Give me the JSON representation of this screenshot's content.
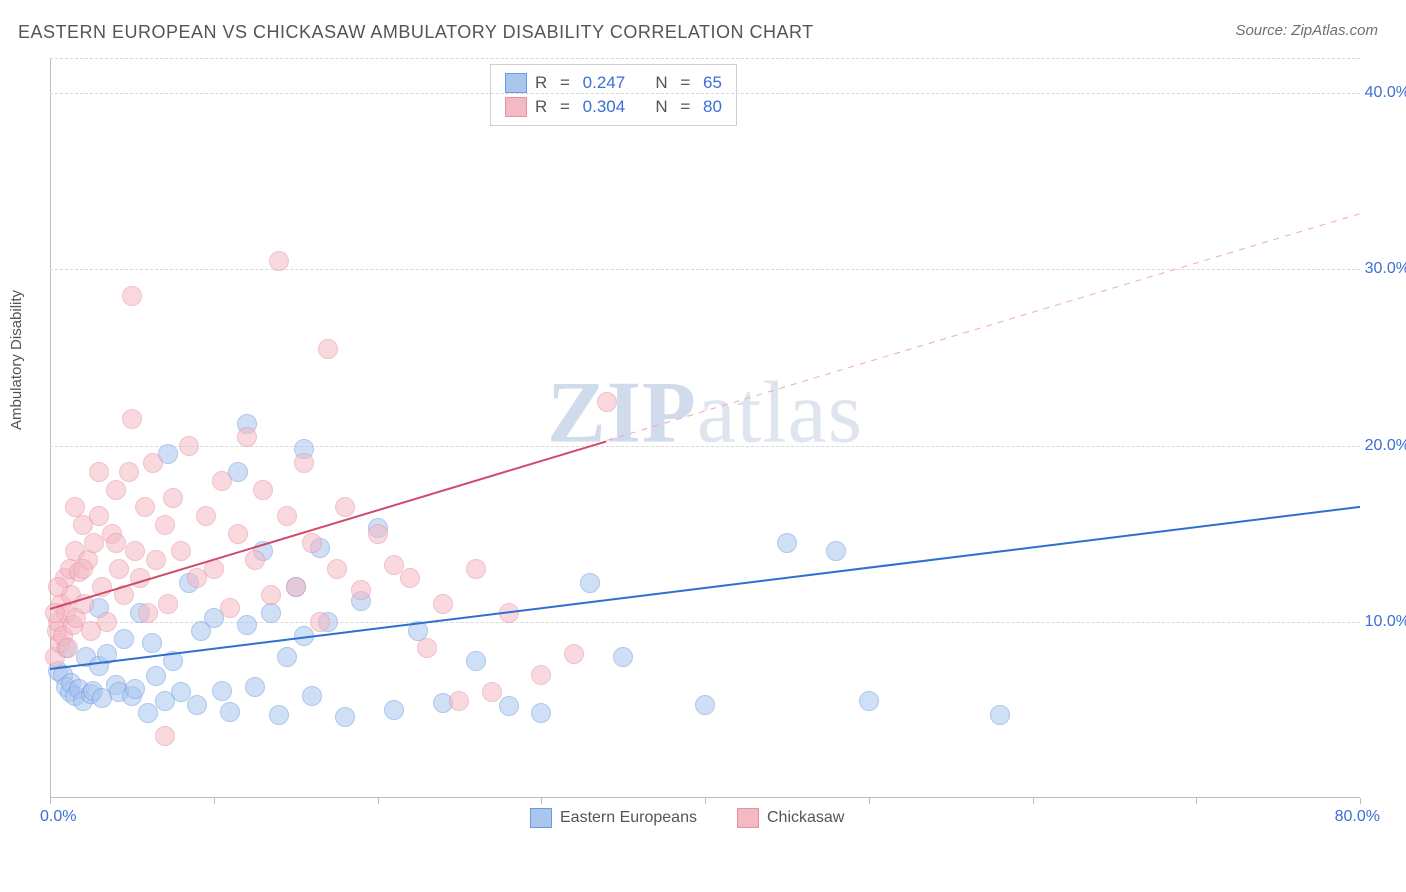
{
  "title": "EASTERN EUROPEAN VS CHICKASAW AMBULATORY DISABILITY CORRELATION CHART",
  "source": "Source: ZipAtlas.com",
  "ylabel": "Ambulatory Disability",
  "watermark_a": "ZIP",
  "watermark_b": "atlas",
  "chart": {
    "type": "scatter",
    "background_color": "#ffffff",
    "grid_color": "#d8d8d8",
    "axis_color": "#bdbdbd",
    "label_fontsize": 15,
    "tick_fontsize": 16,
    "tick_color": "#3b6fd6",
    "xlim": [
      0,
      80
    ],
    "ylim": [
      0,
      42
    ],
    "y_ticks": [
      10,
      20,
      30,
      40
    ],
    "y_tick_labels": [
      "10.0%",
      "20.0%",
      "30.0%",
      "40.0%"
    ],
    "x_tick_positions": [
      0,
      10,
      20,
      30,
      40,
      50,
      60,
      70,
      80
    ],
    "x_min_label": "0.0%",
    "x_max_label": "80.0%",
    "marker_radius": 9,
    "marker_opacity": 0.55,
    "series": [
      {
        "name": "Eastern Europeans",
        "color_fill": "#a9c6ef",
        "color_stroke": "#6d9be0",
        "R_label": "R",
        "R": "0.247",
        "N_label": "N",
        "N": "65",
        "regression": {
          "slope": 0.115,
          "intercept": 7.4,
          "color": "#2f6fd0",
          "width": 2,
          "dash": false,
          "x_end": 80
        },
        "points": [
          [
            0.5,
            7.2
          ],
          [
            0.8,
            7.0
          ],
          [
            1.0,
            6.3
          ],
          [
            1.2,
            6.0
          ],
          [
            1.3,
            6.5
          ],
          [
            1.5,
            5.8
          ],
          [
            1.8,
            6.2
          ],
          [
            2.0,
            5.5
          ],
          [
            2.2,
            8.0
          ],
          [
            2.5,
            5.9
          ],
          [
            2.6,
            6.1
          ],
          [
            3.0,
            7.5
          ],
          [
            3.2,
            5.7
          ],
          [
            3.5,
            8.2
          ],
          [
            4.0,
            6.4
          ],
          [
            4.2,
            6.0
          ],
          [
            4.5,
            9.0
          ],
          [
            5.0,
            5.8
          ],
          [
            5.2,
            6.2
          ],
          [
            5.5,
            10.5
          ],
          [
            6.0,
            4.8
          ],
          [
            6.2,
            8.8
          ],
          [
            6.5,
            6.9
          ],
          [
            7.0,
            5.5
          ],
          [
            7.2,
            19.5
          ],
          [
            7.5,
            7.8
          ],
          [
            8.0,
            6.0
          ],
          [
            8.5,
            12.2
          ],
          [
            9.0,
            5.3
          ],
          [
            9.2,
            9.5
          ],
          [
            10.0,
            10.2
          ],
          [
            10.5,
            6.1
          ],
          [
            11.0,
            4.9
          ],
          [
            11.5,
            18.5
          ],
          [
            12.0,
            9.8
          ],
          [
            12.5,
            6.3
          ],
          [
            13.0,
            14.0
          ],
          [
            13.5,
            10.5
          ],
          [
            14.0,
            4.7
          ],
          [
            14.5,
            8.0
          ],
          [
            15.0,
            12.0
          ],
          [
            15.5,
            9.2
          ],
          [
            16.0,
            5.8
          ],
          [
            16.5,
            14.2
          ],
          [
            17.0,
            10.0
          ],
          [
            18.0,
            4.6
          ],
          [
            19.0,
            11.2
          ],
          [
            20.0,
            15.3
          ],
          [
            21.0,
            5.0
          ],
          [
            22.5,
            9.5
          ],
          [
            24.0,
            5.4
          ],
          [
            26.0,
            7.8
          ],
          [
            28.0,
            5.2
          ],
          [
            30.0,
            4.8
          ],
          [
            33.0,
            12.2
          ],
          [
            35.0,
            8.0
          ],
          [
            40.0,
            5.3
          ],
          [
            45.0,
            14.5
          ],
          [
            48.0,
            14.0
          ],
          [
            50.0,
            5.5
          ],
          [
            58.0,
            4.7
          ],
          [
            12.0,
            21.2
          ],
          [
            15.5,
            19.8
          ],
          [
            3.0,
            10.8
          ],
          [
            1.0,
            8.5
          ]
        ]
      },
      {
        "name": "Chickasaw",
        "color_fill": "#f5b9c4",
        "color_stroke": "#e890a3",
        "R_label": "R",
        "R": "0.304",
        "N_label": "N",
        "N": "80",
        "regression": {
          "slope": 0.28,
          "intercept": 10.8,
          "color": "#d14a6a",
          "width": 2,
          "dash": false,
          "x_end": 34
        },
        "regression_ext": {
          "slope": 0.28,
          "intercept": 10.8,
          "color": "#f0a8b8",
          "width": 1,
          "dash": true,
          "x_start": 34,
          "x_end": 80
        },
        "points": [
          [
            0.3,
            8.0
          ],
          [
            0.4,
            9.5
          ],
          [
            0.5,
            10.0
          ],
          [
            0.6,
            8.8
          ],
          [
            0.7,
            11.0
          ],
          [
            0.8,
            9.2
          ],
          [
            0.9,
            12.5
          ],
          [
            1.0,
            10.5
          ],
          [
            1.1,
            8.5
          ],
          [
            1.2,
            13.0
          ],
          [
            1.3,
            11.5
          ],
          [
            1.4,
            9.8
          ],
          [
            1.5,
            14.0
          ],
          [
            1.6,
            10.2
          ],
          [
            1.8,
            12.8
          ],
          [
            2.0,
            15.5
          ],
          [
            2.1,
            11.0
          ],
          [
            2.3,
            13.5
          ],
          [
            2.5,
            9.5
          ],
          [
            2.7,
            14.5
          ],
          [
            3.0,
            16.0
          ],
          [
            3.2,
            12.0
          ],
          [
            3.5,
            10.0
          ],
          [
            3.8,
            15.0
          ],
          [
            4.0,
            17.5
          ],
          [
            4.2,
            13.0
          ],
          [
            4.5,
            11.5
          ],
          [
            4.8,
            18.5
          ],
          [
            5.0,
            28.5
          ],
          [
            5.2,
            14.0
          ],
          [
            5.5,
            12.5
          ],
          [
            5.8,
            16.5
          ],
          [
            6.0,
            10.5
          ],
          [
            6.3,
            19.0
          ],
          [
            6.5,
            13.5
          ],
          [
            7.0,
            15.5
          ],
          [
            7.2,
            11.0
          ],
          [
            7.5,
            17.0
          ],
          [
            8.0,
            14.0
          ],
          [
            8.5,
            20.0
          ],
          [
            9.0,
            12.5
          ],
          [
            9.5,
            16.0
          ],
          [
            10.0,
            13.0
          ],
          [
            10.5,
            18.0
          ],
          [
            11.0,
            10.8
          ],
          [
            11.5,
            15.0
          ],
          [
            12.0,
            20.5
          ],
          [
            12.5,
            13.5
          ],
          [
            13.0,
            17.5
          ],
          [
            13.5,
            11.5
          ],
          [
            14.0,
            30.5
          ],
          [
            14.5,
            16.0
          ],
          [
            15.0,
            12.0
          ],
          [
            15.5,
            19.0
          ],
          [
            16.0,
            14.5
          ],
          [
            16.5,
            10.0
          ],
          [
            17.0,
            25.5
          ],
          [
            17.5,
            13.0
          ],
          [
            18.0,
            16.5
          ],
          [
            19.0,
            11.8
          ],
          [
            20.0,
            15.0
          ],
          [
            21.0,
            13.2
          ],
          [
            22.0,
            12.5
          ],
          [
            23.0,
            8.5
          ],
          [
            24.0,
            11.0
          ],
          [
            25.0,
            5.5
          ],
          [
            26.0,
            13.0
          ],
          [
            27.0,
            6.0
          ],
          [
            28.0,
            10.5
          ],
          [
            30.0,
            7.0
          ],
          [
            32.0,
            8.2
          ],
          [
            34.0,
            22.5
          ],
          [
            7.0,
            3.5
          ],
          [
            5.0,
            21.5
          ],
          [
            3.0,
            18.5
          ],
          [
            1.5,
            16.5
          ],
          [
            0.5,
            12.0
          ],
          [
            0.3,
            10.5
          ],
          [
            2.0,
            13.0
          ],
          [
            4.0,
            14.5
          ]
        ]
      }
    ],
    "legend_bottom": [
      {
        "label": "Eastern Europeans",
        "fill": "#a9c6ef",
        "stroke": "#6d9be0"
      },
      {
        "label": "Chickasaw",
        "fill": "#f5b9c4",
        "stroke": "#e890a3"
      }
    ]
  }
}
